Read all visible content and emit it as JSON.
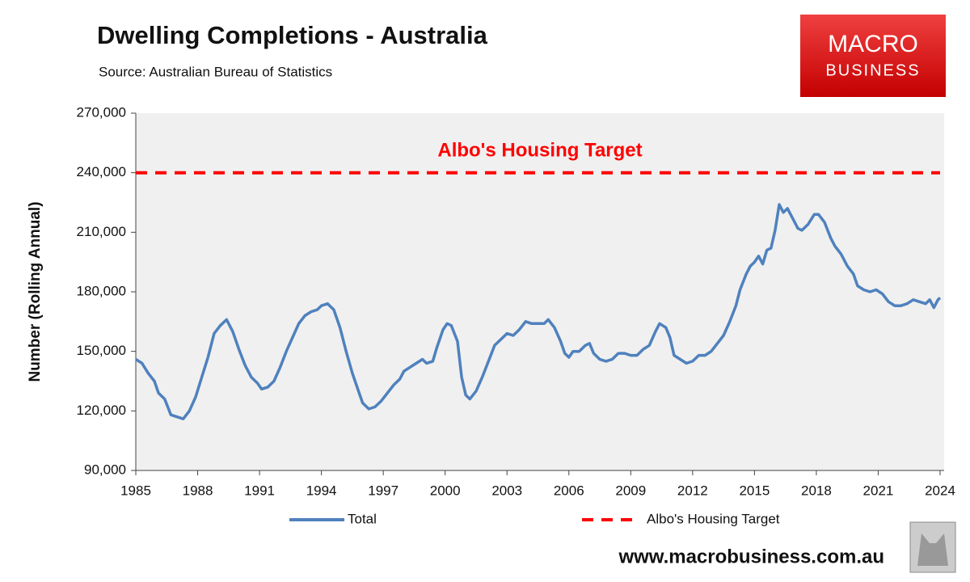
{
  "chart_data": {
    "type": "line",
    "title": "Dwelling Completions - Australia",
    "subtitle": "Source: Australian Bureau of Statistics",
    "y_label": "Number (Rolling Annual)",
    "annotation": "Albo's Housing Target",
    "xlim": [
      1985,
      2024
    ],
    "xticks": [
      1985,
      1988,
      1991,
      1994,
      1997,
      2000,
      2003,
      2006,
      2009,
      2012,
      2015,
      2018,
      2021,
      2024
    ],
    "ylim": [
      90000,
      270000
    ],
    "yticks": [
      {
        "value": 90000,
        "label": "90,000"
      },
      {
        "value": 120000,
        "label": "120,000"
      },
      {
        "value": 150000,
        "label": "150,000"
      },
      {
        "value": 180000,
        "label": "180,000"
      },
      {
        "value": 210000,
        "label": "210,000"
      },
      {
        "value": 240000,
        "label": "240,000"
      },
      {
        "value": 270000,
        "label": "270,000"
      }
    ],
    "background": "#f0f0f0",
    "legend": "bottom",
    "series": [
      {
        "name": "Total",
        "color": "#4f81bd",
        "dash": false,
        "x": [
          1985.0,
          1985.3,
          1985.6,
          1985.9,
          1986.1,
          1986.4,
          1986.7,
          1987.0,
          1987.3,
          1987.6,
          1987.9,
          1988.2,
          1988.5,
          1988.8,
          1989.1,
          1989.4,
          1989.7,
          1990.0,
          1990.3,
          1990.6,
          1990.9,
          1991.1,
          1991.4,
          1991.7,
          1992.0,
          1992.3,
          1992.6,
          1992.9,
          1993.2,
          1993.5,
          1993.8,
          1994.0,
          1994.3,
          1994.6,
          1994.9,
          1995.2,
          1995.5,
          1995.8,
          1996.0,
          1996.3,
          1996.6,
          1996.9,
          1997.2,
          1997.5,
          1997.8,
          1998.0,
          1998.3,
          1998.6,
          1998.9,
          1999.1,
          1999.4,
          1999.6,
          1999.9,
          2000.1,
          2000.3,
          2000.6,
          2000.8,
          2001.0,
          2001.2,
          2001.5,
          2001.8,
          2002.1,
          2002.4,
          2002.7,
          2003.0,
          2003.3,
          2003.6,
          2003.9,
          2004.2,
          2004.5,
          2004.8,
          2005.0,
          2005.3,
          2005.6,
          2005.8,
          2006.0,
          2006.2,
          2006.5,
          2006.8,
          2007.0,
          2007.2,
          2007.5,
          2007.8,
          2008.1,
          2008.4,
          2008.7,
          2009.0,
          2009.3,
          2009.6,
          2009.9,
          2010.2,
          2010.4,
          2010.7,
          2010.9,
          2011.1,
          2011.4,
          2011.7,
          2012.0,
          2012.3,
          2012.6,
          2012.9,
          2013.2,
          2013.5,
          2013.8,
          2014.1,
          2014.3,
          2014.6,
          2014.8,
          2015.0,
          2015.2,
          2015.4,
          2015.6,
          2015.8,
          2016.0,
          2016.2,
          2016.4,
          2016.6,
          2016.9,
          2017.1,
          2017.3,
          2017.6,
          2017.9,
          2018.1,
          2018.4,
          2018.7,
          2018.9,
          2019.2,
          2019.5,
          2019.8,
          2020.0,
          2020.3,
          2020.6,
          2020.9,
          2021.2,
          2021.5,
          2021.8,
          2022.1,
          2022.4,
          2022.7,
          2023.0,
          2023.3,
          2023.5,
          2023.7,
          2023.9,
          2024.0
        ],
        "values": [
          146000,
          144000,
          139000,
          135000,
          129000,
          126000,
          118000,
          117000,
          116000,
          120000,
          127000,
          137000,
          147000,
          159000,
          163000,
          166000,
          160000,
          151000,
          143000,
          137000,
          134000,
          131000,
          132000,
          135000,
          142000,
          150000,
          157000,
          164000,
          168000,
          170000,
          171000,
          173000,
          174000,
          171000,
          162000,
          150000,
          139000,
          130000,
          124000,
          121000,
          122000,
          125000,
          129000,
          133000,
          136000,
          140000,
          142000,
          144000,
          146000,
          144000,
          145000,
          152000,
          161000,
          164000,
          163000,
          155000,
          137000,
          128000,
          126000,
          130000,
          137000,
          145000,
          153000,
          156000,
          159000,
          158000,
          161000,
          165000,
          164000,
          164000,
          164000,
          166000,
          162000,
          155000,
          149000,
          147000,
          150000,
          150000,
          153000,
          154000,
          149000,
          146000,
          145000,
          146000,
          149000,
          149000,
          148000,
          148000,
          151000,
          153000,
          160000,
          164000,
          162000,
          157000,
          148000,
          146000,
          144000,
          145000,
          148000,
          148000,
          150000,
          154000,
          158000,
          165000,
          173000,
          181000,
          189000,
          193000,
          195000,
          198000,
          194000,
          201000,
          202000,
          211000,
          224000,
          220000,
          222000,
          216000,
          212000,
          211000,
          214000,
          219000,
          219000,
          215000,
          207000,
          203000,
          199000,
          193000,
          189000,
          183000,
          181000,
          180000,
          181000,
          179000,
          175000,
          173000,
          173000,
          174000,
          176000,
          175000,
          174000,
          176000,
          172000,
          176000,
          177000
        ]
      },
      {
        "name": "Albo's Housing Target",
        "color": "#ff0000",
        "dash": true,
        "x": [
          1985,
          2024
        ],
        "values": [
          240000,
          240000
        ]
      }
    ]
  },
  "logo": {
    "line1": "MACRO",
    "line2": "BUSINESS"
  },
  "footer": "www.macrobusiness.com.au"
}
